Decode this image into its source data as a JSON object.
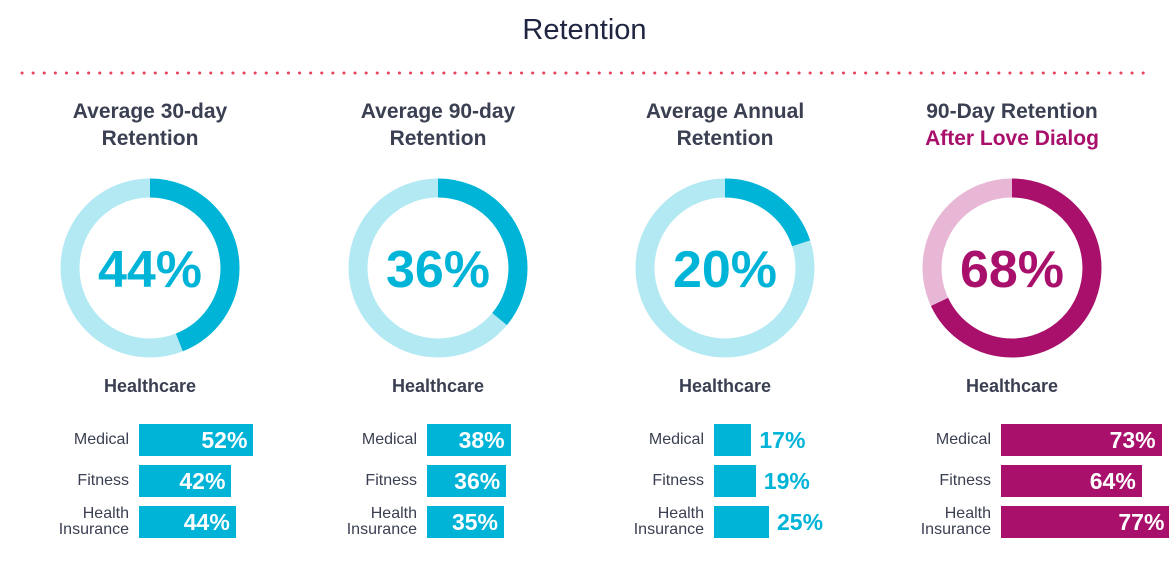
{
  "title": "Retention",
  "chart_data": [
    {
      "type": "pie",
      "title": [
        "Average 30-day",
        "Retention"
      ],
      "center_label": "44%",
      "value": 44,
      "category": "Healthcare",
      "colors": {
        "fill": "#00b4d8",
        "track": "#b3e9f3",
        "text": "#00b4d8"
      },
      "bars": {
        "type": "bar",
        "categories": [
          [
            "Medical"
          ],
          [
            "Fitness"
          ],
          [
            "Health",
            "Insurance"
          ]
        ],
        "values": [
          52,
          42,
          44
        ],
        "labels": [
          "52%",
          "42%",
          "44%"
        ],
        "value_text_inside": true,
        "xlim": [
          0,
          100
        ]
      }
    },
    {
      "type": "pie",
      "title": [
        "Average 90-day",
        "Retention"
      ],
      "center_label": "36%",
      "value": 36,
      "category": "Healthcare",
      "colors": {
        "fill": "#00b4d8",
        "track": "#b3e9f3",
        "text": "#00b4d8"
      },
      "bars": {
        "type": "bar",
        "categories": [
          [
            "Medical"
          ],
          [
            "Fitness"
          ],
          [
            "Health",
            "Insurance"
          ]
        ],
        "values": [
          38,
          36,
          35
        ],
        "labels": [
          "38%",
          "36%",
          "35%"
        ],
        "value_text_inside": true,
        "xlim": [
          0,
          100
        ]
      }
    },
    {
      "type": "pie",
      "title": [
        "Average Annual",
        "Retention"
      ],
      "center_label": "20%",
      "value": 20,
      "category": "Healthcare",
      "colors": {
        "fill": "#00b4d8",
        "track": "#b3e9f3",
        "text": "#00b4d8"
      },
      "bars": {
        "type": "bar",
        "categories": [
          [
            "Medical"
          ],
          [
            "Fitness"
          ],
          [
            "Health",
            "Insurance"
          ]
        ],
        "values": [
          17,
          19,
          25
        ],
        "labels": [
          "17%",
          "19%",
          "25%"
        ],
        "value_text_inside": false,
        "xlim": [
          0,
          100
        ]
      }
    },
    {
      "type": "pie",
      "title": [
        "90-Day Retention",
        "After Love Dialog"
      ],
      "center_label": "68%",
      "value": 68,
      "category": "Healthcare",
      "colors": {
        "fill": "#a8106b",
        "track": "#e8b7d6",
        "text": "#a8106b"
      },
      "bars": {
        "type": "bar",
        "categories": [
          [
            "Medical"
          ],
          [
            "Fitness"
          ],
          [
            "Health",
            "Insurance"
          ]
        ],
        "values": [
          73,
          64,
          77
        ],
        "labels": [
          "73%",
          "64%",
          "77%"
        ],
        "value_text_inside": true,
        "xlim": [
          0,
          100
        ]
      }
    }
  ]
}
